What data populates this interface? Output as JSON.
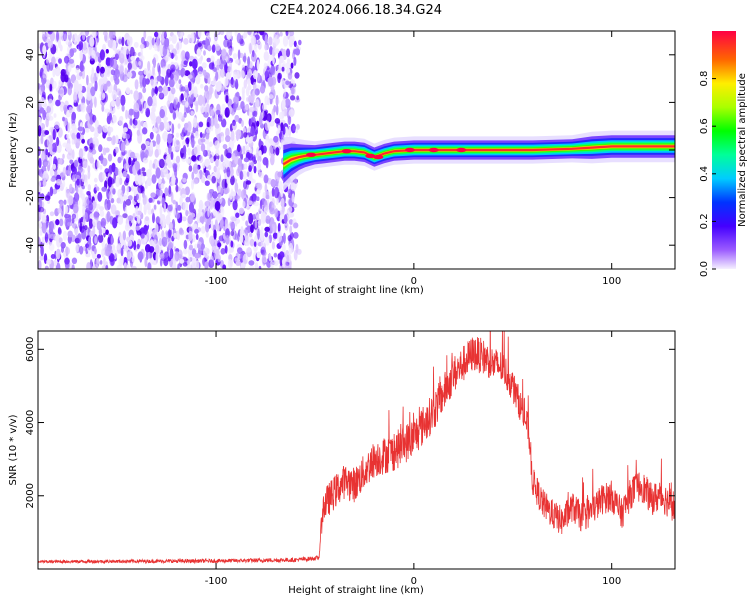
{
  "title": "C2E4.2024.066.18.34.G24",
  "chart_data": [
    {
      "type": "heatmap",
      "xlabel": "Height of straight line (km)",
      "ylabel": "Frequency (Hz)",
      "xlim": [
        -190,
        132
      ],
      "ylim": [
        -50,
        50
      ],
      "xticks": [
        -100,
        0,
        100
      ],
      "yticks": [
        -40,
        -20,
        0,
        20,
        40
      ],
      "noise_region_x": [
        -190,
        -57
      ],
      "noise_fade_x": [
        -62,
        -57
      ],
      "trace": {
        "x": [
          -66,
          -62,
          -58,
          -55,
          -50,
          -45,
          -40,
          -35,
          -30,
          -25,
          -20,
          -15,
          -10,
          0,
          20,
          40,
          60,
          80,
          90,
          100,
          110,
          120,
          132
        ],
        "freq": [
          -6,
          -4,
          -3,
          -2.5,
          -2,
          -1.5,
          -1,
          -0.5,
          -0.5,
          -1,
          -3,
          -1.5,
          -0.5,
          0,
          0,
          0,
          0,
          0.5,
          1,
          1.5,
          1.5,
          1.5,
          1.5
        ],
        "half_width": [
          6,
          5,
          4,
          3.5,
          3,
          3,
          3,
          3,
          3,
          3,
          3,
          3,
          3,
          3,
          3,
          3,
          3,
          3,
          3.5,
          3.5,
          3.5,
          3.5,
          3.5
        ]
      },
      "colorbar": {
        "label": "Normalized spectral amplitude",
        "range": [
          0,
          1
        ],
        "ticks": [
          0.0,
          0.2,
          0.4,
          0.6,
          0.8
        ],
        "tick_labels": [
          "0.0",
          "0.2",
          "0.4",
          "0.6",
          "0.8"
        ]
      }
    },
    {
      "type": "line",
      "xlabel": "Height of straight line (km)",
      "ylabel": "SNR (10 * v/v)",
      "xlim": [
        -190,
        132
      ],
      "ylim": [
        0,
        6500
      ],
      "xticks": [
        -100,
        0,
        100
      ],
      "yticks": [
        2000,
        4000,
        6000
      ],
      "color": "#e83232",
      "envelope": {
        "x": [
          -190,
          -150,
          -100,
          -60,
          -48,
          -46,
          -40,
          -35,
          -30,
          -20,
          -10,
          0,
          10,
          20,
          25,
          30,
          35,
          40,
          45,
          50,
          55,
          58,
          60,
          65,
          70,
          75,
          80,
          85,
          90,
          95,
          100,
          105,
          110,
          115,
          120,
          125,
          132
        ],
        "snr": [
          200,
          210,
          220,
          250,
          300,
          1700,
          2100,
          2400,
          2300,
          3000,
          3200,
          3600,
          4300,
          5300,
          5600,
          5900,
          5800,
          5600,
          5500,
          5000,
          4300,
          3800,
          2400,
          1800,
          1500,
          1300,
          1700,
          1400,
          1600,
          1900,
          2000,
          1500,
          2100,
          2300,
          1900,
          2000,
          1700
        ]
      },
      "noise_amplitude": {
        "x": [
          -190,
          -48,
          -46,
          0,
          30,
          50,
          60,
          132
        ],
        "amp": [
          40,
          60,
          450,
          550,
          500,
          450,
          400,
          450
        ]
      }
    }
  ]
}
